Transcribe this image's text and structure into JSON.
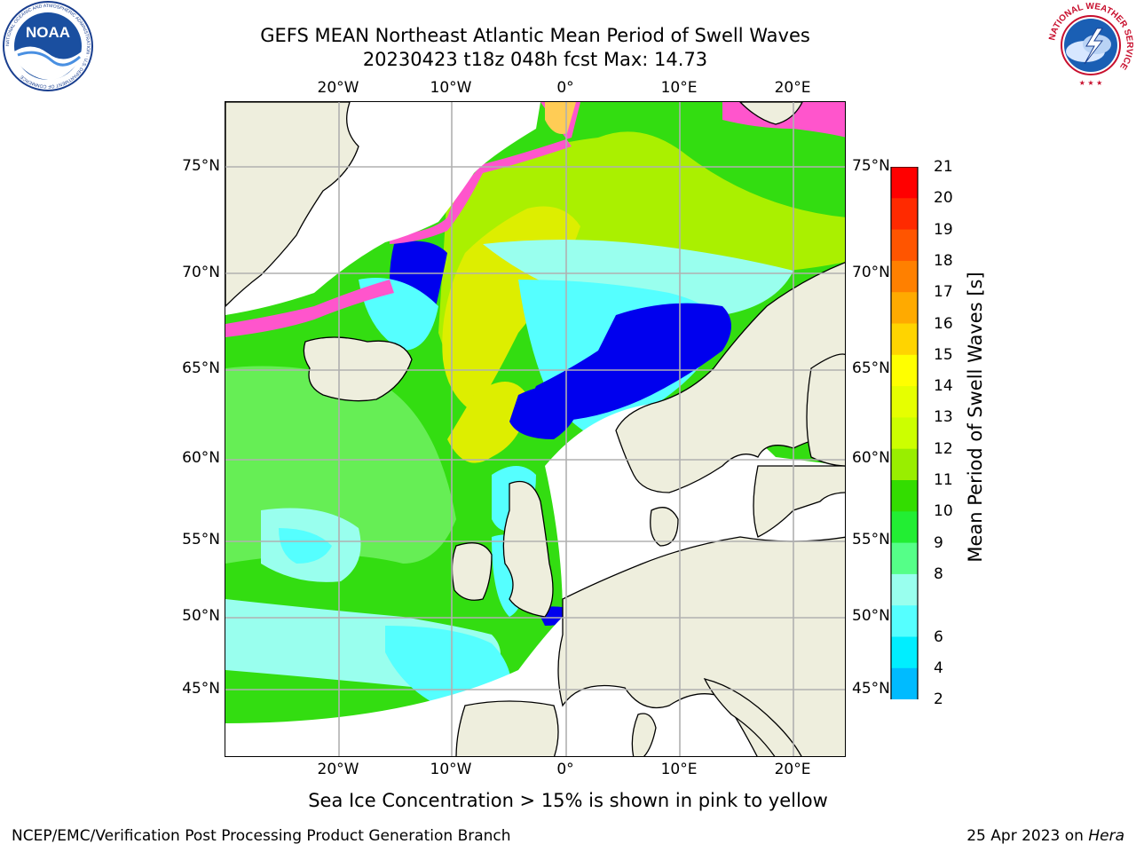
{
  "title": {
    "line1": "GEFS MEAN Northeast Atlantic Mean Period of Swell Waves",
    "line2": "20230423 t18z 048h fcst   Max: 14.73"
  },
  "axes": {
    "x_ticks": [
      "20°W",
      "10°W",
      "0°",
      "10°E",
      "20°E"
    ],
    "y_ticks": [
      "75°N",
      "70°N",
      "65°N",
      "60°N",
      "55°N",
      "50°N",
      "45°N"
    ]
  },
  "colorbar": {
    "label": "Mean Period of Swell Waves [s]",
    "ticks": [
      "21",
      "20",
      "19",
      "18",
      "17",
      "16",
      "15",
      "14",
      "13",
      "12",
      "11",
      "10",
      "9",
      "8",
      "6",
      "4",
      "2"
    ],
    "colors": [
      "#ff0000",
      "#ff2a00",
      "#ff5500",
      "#ff8000",
      "#ffaa00",
      "#ffd400",
      "#ffff00",
      "#e6ff00",
      "#ccff00",
      "#99ee00",
      "#33dd00",
      "#22ee33",
      "#55ff88",
      "#99ffee",
      "#55ffff",
      "#00eeff",
      "#00bbff",
      "#0066ff"
    ],
    "extend_color": "#0000ee"
  },
  "footnote": "Sea Ice Concentration > 15% is shown in pink to yellow",
  "footer": {
    "left": "NCEP/EMC/Verification Post Processing Product Generation Branch",
    "right_date": "25 Apr 2023 on",
    "right_host": "Hera"
  },
  "logos": {
    "noaa_text": "NOAA",
    "noaa_ring": "NATIONAL OCEANIC AND ATMOSPHERIC ADMINISTRATION · U.S. DEPARTMENT OF COMMERCE",
    "nws_ring": "NATIONAL WEATHER SERVICE"
  },
  "map_colors": {
    "land": "#eeeedd",
    "ocean_green": "#33dd11",
    "ocean_light_green": "#66ee55",
    "ocean_yellow_green": "#aaf000",
    "ocean_yellow": "#ddee00",
    "ocean_cyan": "#55ffff",
    "ocean_light_cyan": "#99ffee",
    "ocean_blue": "#0000ee",
    "ice_pink": "#ff55cc",
    "grid": "#b0b0b0"
  }
}
